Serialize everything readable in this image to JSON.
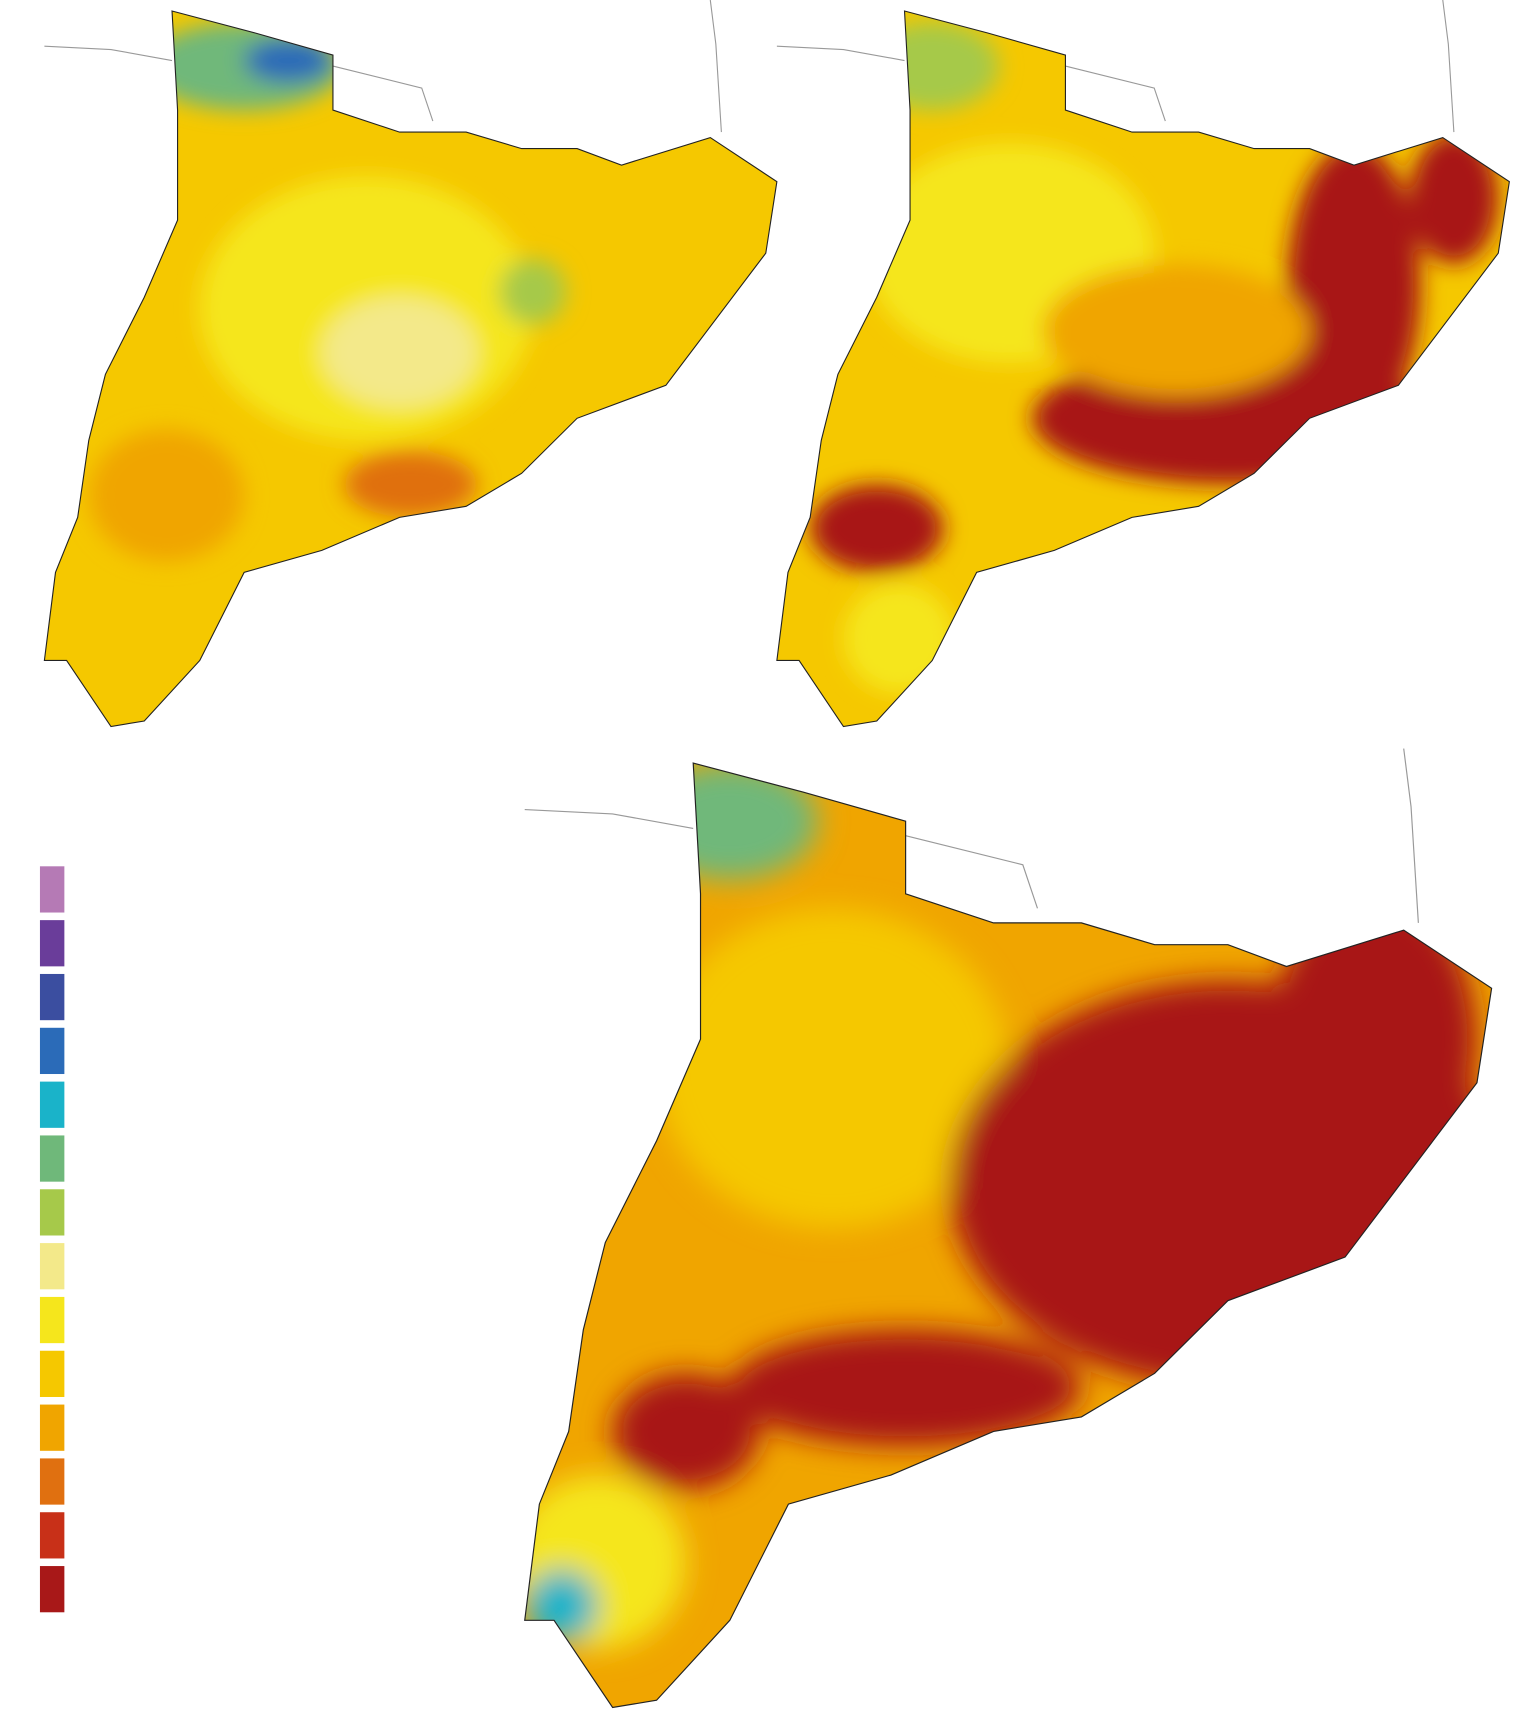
{
  "legend": {
    "colors": [
      "#b57ab5",
      "#6a3d9a",
      "#3b4ea0",
      "#2b6bb8",
      "#1ab3c9",
      "#6fb87a",
      "#a6c94a",
      "#f3e98a",
      "#f5e61c",
      "#f5c800",
      "#f0a500",
      "#e07010",
      "#c83018",
      "#a81818"
    ]
  }
}
